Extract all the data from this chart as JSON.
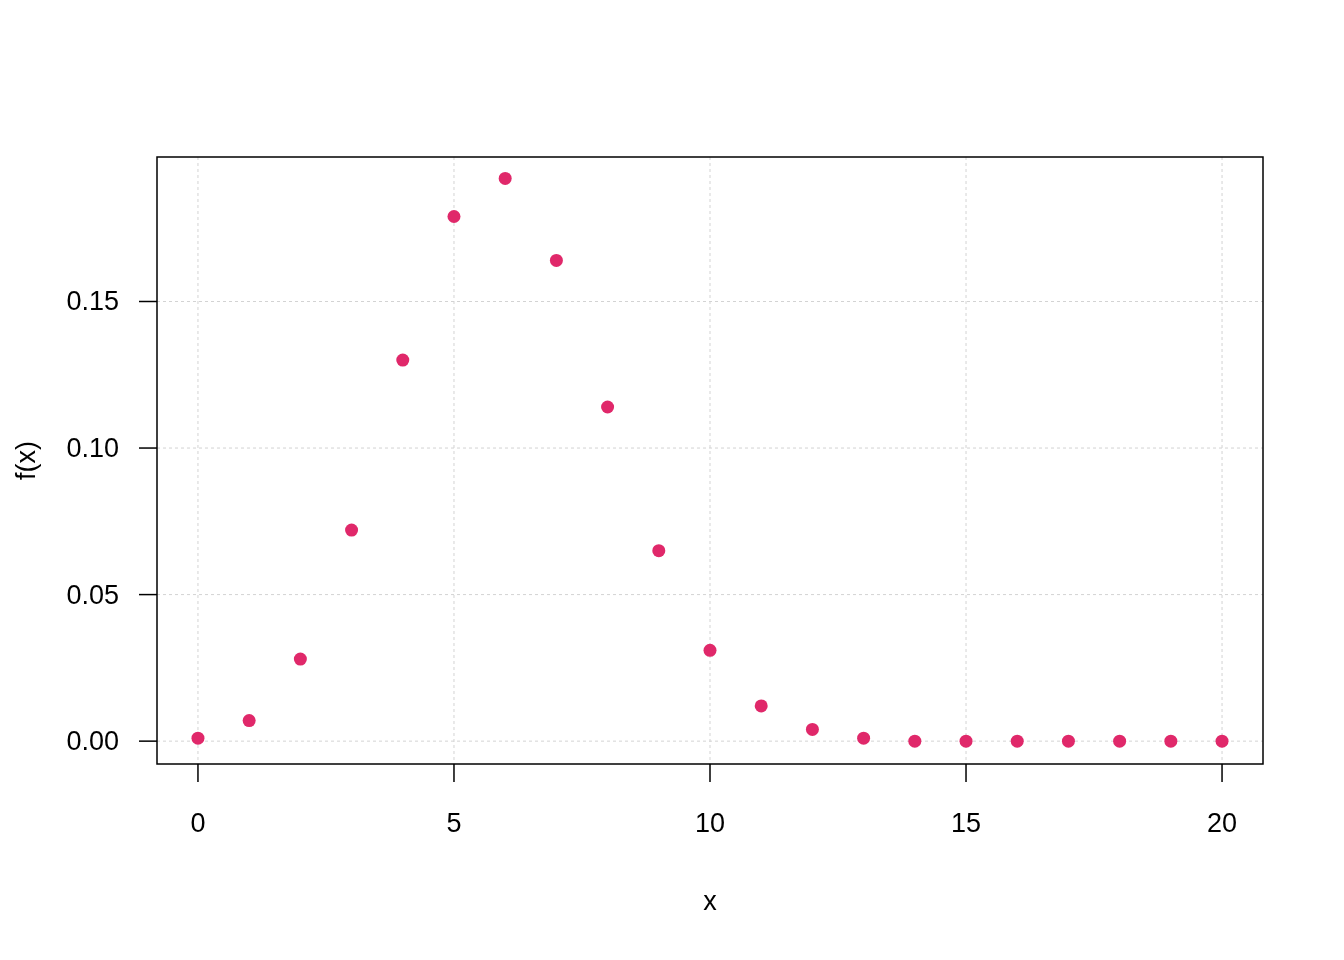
{
  "chart_data": {
    "type": "scatter",
    "xlabel": "x",
    "ylabel": "f(x)",
    "x": [
      0,
      1,
      2,
      3,
      4,
      5,
      6,
      7,
      8,
      9,
      10,
      11,
      12,
      13,
      14,
      15,
      16,
      17,
      18,
      19,
      20
    ],
    "values": [
      0.001,
      0.007,
      0.028,
      0.072,
      0.13,
      0.179,
      0.192,
      0.164,
      0.114,
      0.065,
      0.031,
      0.012,
      0.004,
      0.001,
      0,
      0,
      0,
      0,
      0,
      0,
      0
    ],
    "color": "#e0286a",
    "marker": "circle",
    "grid": true,
    "xlim": [
      -0.8,
      20.8
    ],
    "ylim": [
      -0.0078,
      0.1993
    ],
    "xticks": [
      0,
      5,
      10,
      15,
      20
    ],
    "yticks": [
      {
        "value": 0,
        "label": "0.00"
      },
      {
        "value": 0.05,
        "label": "0.05"
      },
      {
        "value": 0.1,
        "label": "0.10"
      },
      {
        "value": 0.15,
        "label": "0.15"
      }
    ]
  }
}
